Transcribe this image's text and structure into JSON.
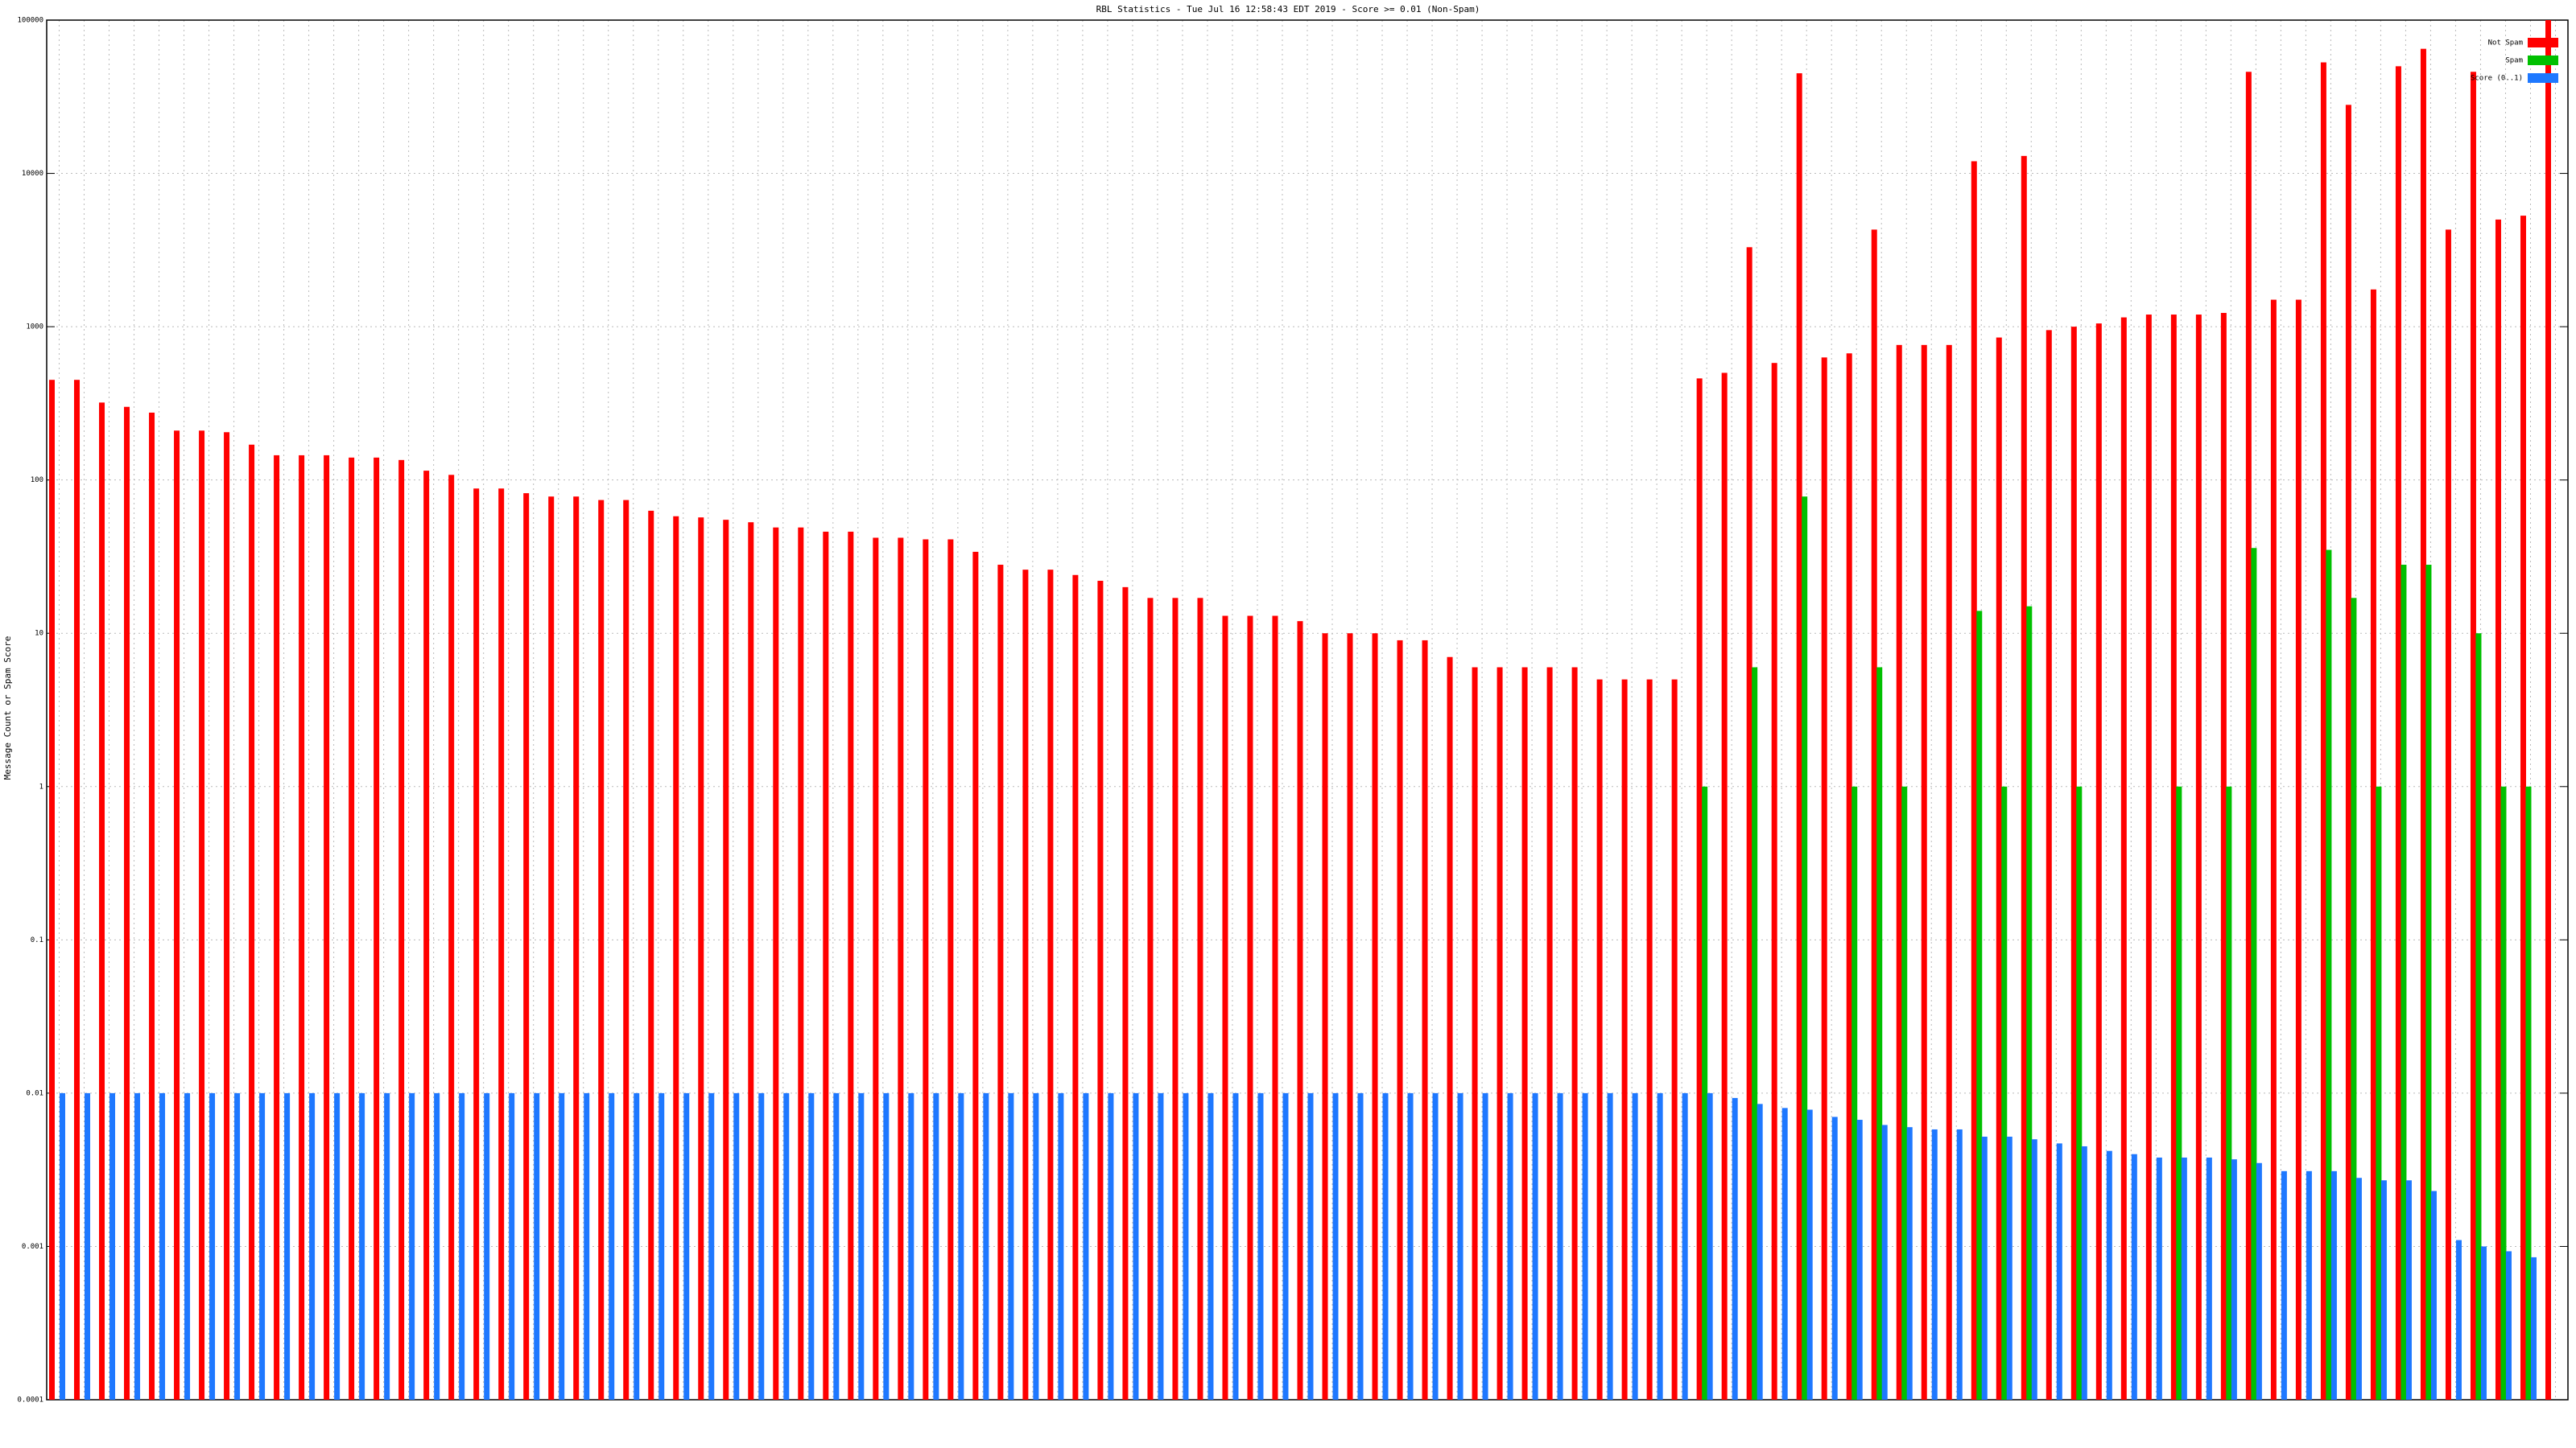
{
  "chart_data": {
    "type": "bar",
    "title": "RBL Statistics - Tue Jul 16 12:58:43 EDT 2019 - Score >= 0.01 (Non-Spam)",
    "ylabel": "Message Count or Spam Score",
    "log_scale": true,
    "grid": true,
    "legend": "upper right",
    "ylim": [
      0.0001,
      100000
    ],
    "yticks": [
      0.0001,
      0.001,
      0.01,
      0.1,
      1,
      10,
      100,
      1000,
      10000,
      100000
    ],
    "categories": [
      null,
      null,
      null,
      null,
      null,
      null,
      null,
      null,
      null,
      null,
      null,
      null,
      null,
      null,
      null,
      null,
      null,
      null,
      null,
      null,
      null,
      null,
      null,
      null,
      null,
      null,
      null,
      null,
      null,
      null,
      null,
      null,
      null,
      null,
      null,
      null,
      null,
      null,
      null,
      null,
      null,
      null,
      null,
      null,
      null,
      null,
      null,
      null,
      null,
      null,
      null,
      null,
      null,
      null,
      null,
      null,
      null,
      null,
      null,
      null,
      null,
      null,
      null,
      null,
      null,
      null,
      null,
      null,
      null,
      null,
      null,
      null,
      null,
      null,
      null,
      null,
      null,
      null,
      null,
      null,
      null,
      null,
      null,
      null,
      null,
      null,
      null,
      null,
      null,
      null,
      null,
      null,
      null,
      null,
      null,
      null,
      null,
      null,
      null,
      null,
      null
    ],
    "series": [
      {
        "name": "Not Spam",
        "color": "#ff0000",
        "values": [
          450,
          450,
          320,
          300,
          275,
          210,
          210,
          205,
          170,
          145,
          145,
          145,
          140,
          140,
          135,
          115,
          108,
          88,
          88,
          82,
          78,
          78,
          74,
          74,
          63,
          58,
          57,
          55,
          53,
          49,
          49,
          46,
          46,
          42,
          42,
          41,
          41,
          34,
          28,
          26,
          26,
          24,
          22,
          20,
          17,
          17,
          17,
          13,
          13,
          13,
          12,
          10,
          10,
          10,
          9,
          9,
          7,
          6,
          6,
          6,
          6,
          6,
          5,
          5,
          5,
          5,
          460,
          500,
          3300,
          580,
          45000,
          630,
          670,
          4300,
          760,
          760,
          760,
          12000,
          850,
          13000,
          950,
          1000,
          1050,
          1150,
          1200,
          1200,
          1200,
          1230,
          46000,
          1500,
          1500,
          53000,
          28000,
          1750,
          50000,
          65000,
          4300,
          46000,
          5000,
          5300,
          100000
        ]
      },
      {
        "name": "Spam",
        "color": "#00c000",
        "values": [
          null,
          null,
          null,
          null,
          null,
          null,
          null,
          null,
          null,
          null,
          null,
          null,
          null,
          null,
          null,
          null,
          null,
          null,
          null,
          null,
          null,
          null,
          null,
          null,
          null,
          null,
          null,
          null,
          null,
          null,
          null,
          null,
          null,
          null,
          null,
          null,
          null,
          null,
          null,
          null,
          null,
          null,
          null,
          null,
          null,
          null,
          null,
          null,
          null,
          null,
          null,
          null,
          null,
          null,
          null,
          null,
          null,
          null,
          null,
          null,
          null,
          null,
          null,
          null,
          null,
          null,
          1,
          null,
          6,
          null,
          78,
          null,
          1,
          6,
          1,
          null,
          null,
          14,
          1,
          15,
          null,
          1,
          null,
          null,
          null,
          1,
          null,
          1,
          36,
          null,
          null,
          35,
          17,
          1,
          28,
          28,
          null,
          10,
          1,
          1,
          null
        ]
      },
      {
        "name": "Score (0..1)",
        "color": "#1e78ff",
        "values": [
          0.01,
          0.01,
          0.01,
          0.01,
          0.01,
          0.01,
          0.01,
          0.01,
          0.01,
          0.01,
          0.01,
          0.01,
          0.01,
          0.01,
          0.01,
          0.01,
          0.01,
          0.01,
          0.01,
          0.01,
          0.01,
          0.01,
          0.01,
          0.01,
          0.01,
          0.01,
          0.01,
          0.01,
          0.01,
          0.01,
          0.01,
          0.01,
          0.01,
          0.01,
          0.01,
          0.01,
          0.01,
          0.01,
          0.01,
          0.01,
          0.01,
          0.01,
          0.01,
          0.01,
          0.01,
          0.01,
          0.01,
          0.01,
          0.01,
          0.01,
          0.01,
          0.01,
          0.01,
          0.01,
          0.01,
          0.01,
          0.01,
          0.01,
          0.01,
          0.01,
          0.01,
          0.01,
          0.01,
          0.01,
          0.01,
          0.01,
          0.01,
          0.0093,
          0.0085,
          0.008,
          0.0078,
          0.007,
          0.0067,
          0.0062,
          0.006,
          0.0058,
          0.0058,
          0.0052,
          0.0052,
          0.005,
          0.0047,
          0.0045,
          0.0042,
          0.004,
          0.0038,
          0.0038,
          0.0038,
          0.0037,
          0.0035,
          0.0031,
          0.0031,
          0.0031,
          0.0028,
          0.0027,
          0.0027,
          0.0023,
          0.0011,
          0.001,
          0.00093,
          0.00085,
          null
        ]
      }
    ]
  }
}
